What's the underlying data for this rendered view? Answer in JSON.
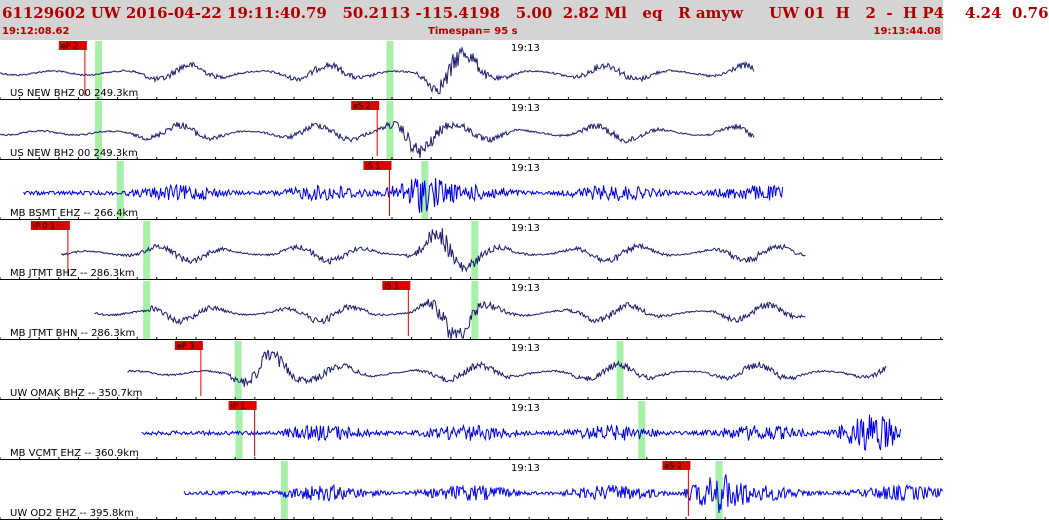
{
  "header": {
    "main": "61129602 UW 2016-04-22 19:11:40.79   50.2113 -115.4198   5.00  2.82 Ml   eq   R amyw     UW 01  H   2  -  H P4    4.24  0.76",
    "start_time": "19:12:08.62",
    "timespan": "Timespan=  95 s",
    "end_time": "19:13:44.08"
  },
  "colors": {
    "header_bg": "#d4d4d4",
    "header_text": "#b00000",
    "trace_dark": "#1c1c6e",
    "trace_blue": "#0000ee",
    "pick_red": "#e00000",
    "green_marker": "#a8f0a8",
    "divider": "#000000"
  },
  "time_marker_label": "19:13",
  "traces": [
    {
      "label": "US NEW BHZ 00 249.3km",
      "color": "dark",
      "pick": "eP 2",
      "pick_at": 0.09,
      "start": 0.0,
      "end": 0.8,
      "onset": 0.1,
      "main": 0.48,
      "greens": [
        0.104,
        0.413
      ]
    },
    {
      "label": "US NEW BH2 00 249.3km",
      "color": "dark",
      "pick": "eS 2",
      "pick_at": 0.4,
      "start": 0.0,
      "end": 0.8,
      "onset": 0.1,
      "main": 0.44,
      "greens": [
        0.104,
        0.413
      ]
    },
    {
      "label": "MB BSMT EHZ -- 266.4km",
      "color": "blue",
      "pick": "iS 1",
      "pick_at": 0.413,
      "start": 0.025,
      "end": 0.83,
      "onset": 0.12,
      "main": 0.445,
      "greens": [
        0.127,
        0.45
      ]
    },
    {
      "label": "MB JTMT BHZ -- 286.3km",
      "color": "dark",
      "pick": "iP 0 1",
      "pick_at": 0.072,
      "start": 0.065,
      "end": 0.855,
      "onset": 0.1,
      "main": 0.47,
      "greens": [
        0.155,
        0.503
      ]
    },
    {
      "label": "MB JTMT BHN -- 286.3km",
      "color": "dark",
      "pick": "iS 1",
      "pick_at": 0.433,
      "start": 0.1,
      "end": 0.855,
      "onset": 0.16,
      "main": 0.48,
      "greens": [
        0.155,
        0.503
      ]
    },
    {
      "label": "UW OMAK BHZ -- 350.7km",
      "color": "dark",
      "pick": "eP 3",
      "pick_at": 0.213,
      "start": 0.135,
      "end": 0.94,
      "onset": 0.245,
      "main": 0.28,
      "greens": [
        0.252,
        0.657
      ]
    },
    {
      "label": "MB VCMT EHZ -- 360.9km",
      "color": "blue",
      "pick": "iP 1",
      "pick_at": 0.27,
      "start": 0.15,
      "end": 0.955,
      "onset": 0.3,
      "main": 0.92,
      "greens": [
        0.253,
        0.68
      ]
    },
    {
      "label": "UW OD2 EHZ -- 395.8km",
      "color": "blue",
      "pick": "eS 2",
      "pick_at": 0.73,
      "start": 0.195,
      "end": 1.0,
      "onset": 0.3,
      "main": 0.76,
      "greens": [
        0.301,
        0.762
      ]
    }
  ]
}
